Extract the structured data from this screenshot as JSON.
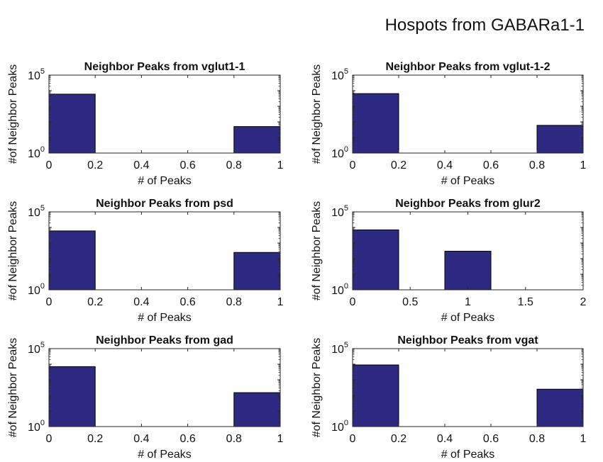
{
  "figure": {
    "title": "Hospots from GABARa1-1"
  },
  "colors": {
    "bar_fill": "#2e2a82",
    "bar_edge": "#000000",
    "axis": "#262626"
  },
  "chart_data": [
    {
      "type": "bar",
      "title": "Neighbor Peaks from vglut1-1",
      "xlabel": "# of Peaks",
      "ylabel": "#of Neighbor Peaks",
      "xlim": [
        0,
        1
      ],
      "xticks": [
        "0",
        "0.2",
        "0.4",
        "0.6",
        "0.8",
        "1"
      ],
      "y_scale": "log",
      "ylim": [
        1,
        100000
      ],
      "bins": [
        {
          "x0": 0,
          "x1": 0.2,
          "value": 6000
        },
        {
          "x0": 0.8,
          "x1": 1,
          "value": 50
        }
      ]
    },
    {
      "type": "bar",
      "title": "Neighbor Peaks from vglut-1-2",
      "xlabel": "# of Peaks",
      "ylabel": "#of Neighbor Peaks",
      "xlim": [
        0,
        1
      ],
      "xticks": [
        "0",
        "0.2",
        "0.4",
        "0.6",
        "0.8",
        "1"
      ],
      "y_scale": "log",
      "ylim": [
        1,
        100000
      ],
      "bins": [
        {
          "x0": 0,
          "x1": 0.2,
          "value": 6500
        },
        {
          "x0": 0.8,
          "x1": 1,
          "value": 60
        }
      ]
    },
    {
      "type": "bar",
      "title": "Neighbor Peaks from psd",
      "xlabel": "# of Peaks",
      "ylabel": "#of Neighbor Peaks",
      "xlim": [
        0,
        1
      ],
      "xticks": [
        "0",
        "0.2",
        "0.4",
        "0.6",
        "0.8",
        "1"
      ],
      "y_scale": "log",
      "ylim": [
        1,
        100000
      ],
      "bins": [
        {
          "x0": 0,
          "x1": 0.2,
          "value": 6000
        },
        {
          "x0": 0.8,
          "x1": 1,
          "value": 250
        }
      ]
    },
    {
      "type": "bar",
      "title": "Neighbor Peaks from glur2",
      "xlabel": "# of Peaks",
      "ylabel": "#of Neighbor Peaks",
      "xlim": [
        0,
        2
      ],
      "xticks": [
        "0",
        "0.5",
        "1",
        "1.5",
        "2"
      ],
      "y_scale": "log",
      "ylim": [
        1,
        100000
      ],
      "bins": [
        {
          "x0": 0,
          "x1": 0.4,
          "value": 7000
        },
        {
          "x0": 0.8,
          "x1": 1.2,
          "value": 300
        }
      ]
    },
    {
      "type": "bar",
      "title": "Neighbor Peaks from gad",
      "xlabel": "# of Peaks",
      "ylabel": "#of Neighbor Peaks",
      "xlim": [
        0,
        1
      ],
      "xticks": [
        "0",
        "0.2",
        "0.4",
        "0.6",
        "0.8",
        "1"
      ],
      "y_scale": "log",
      "ylim": [
        1,
        100000
      ],
      "bins": [
        {
          "x0": 0,
          "x1": 0.2,
          "value": 7000
        },
        {
          "x0": 0.8,
          "x1": 1,
          "value": 150
        }
      ]
    },
    {
      "type": "bar",
      "title": "Neighbor Peaks from vgat",
      "xlabel": "# of Peaks",
      "ylabel": "#of Neighbor Peaks",
      "xlim": [
        0,
        1
      ],
      "xticks": [
        "0",
        "0.2",
        "0.4",
        "0.6",
        "0.8",
        "1"
      ],
      "y_scale": "log",
      "ylim": [
        1,
        100000
      ],
      "bins": [
        {
          "x0": 0,
          "x1": 0.2,
          "value": 9000
        },
        {
          "x0": 0.8,
          "x1": 1,
          "value": 250
        }
      ]
    }
  ]
}
